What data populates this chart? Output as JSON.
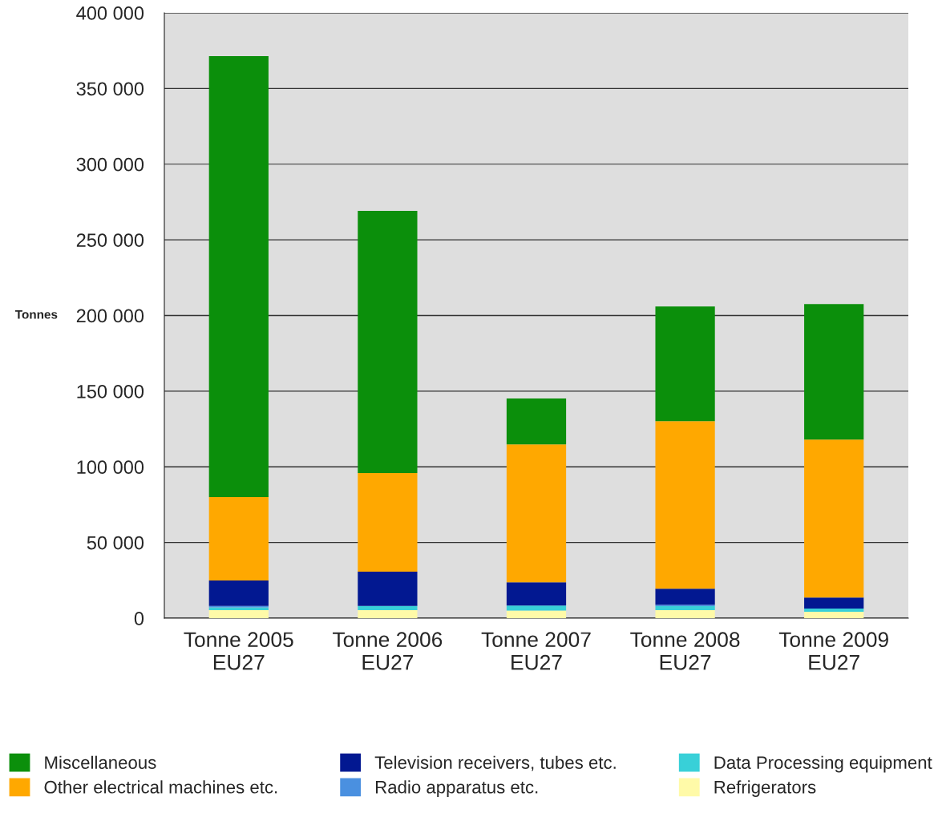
{
  "chart_data": {
    "type": "bar",
    "stacked": true,
    "ylabel": "Tonnes",
    "categories": [
      "Tonne 2005\nEU27",
      "Tonne 2006\nEU27",
      "Tonne 2007\nEU27",
      "Tonne 2008\nEU27",
      "Tonne 2009\nEU27"
    ],
    "series": [
      {
        "name": "Refrigerators",
        "color": "#fffaa8",
        "values": [
          5300,
          5300,
          5000,
          5300,
          4200
        ]
      },
      {
        "name": "Data Processing equipment",
        "color": "#38d0d8",
        "values": [
          1800,
          2800,
          3400,
          2600,
          2100
        ]
      },
      {
        "name": "Radio apparatus etc.",
        "color": "#4a90e0",
        "values": [
          1000,
          0,
          0,
          1000,
          0
        ]
      },
      {
        "name": "Television receivers, tubes etc.",
        "color": "#021891",
        "values": [
          16800,
          22600,
          15300,
          10600,
          7400
        ]
      },
      {
        "name": "Other electrical machines etc.",
        "color": "#ffa800",
        "values": [
          55100,
          65200,
          91200,
          110700,
          104300
        ]
      },
      {
        "name": "Miscellaneous",
        "color": "#0b8f0b",
        "values": [
          291400,
          173200,
          30200,
          75800,
          89600
        ]
      }
    ],
    "ylim": [
      0,
      400000
    ],
    "yticks": [
      {
        "value": 0,
        "label": "0"
      },
      {
        "value": 50000,
        "label": "50 000"
      },
      {
        "value": 100000,
        "label": "100 000"
      },
      {
        "value": 150000,
        "label": "150 000"
      },
      {
        "value": 200000,
        "label": "200 000"
      },
      {
        "value": 250000,
        "label": "250 000"
      },
      {
        "value": 300000,
        "label": "300 000"
      },
      {
        "value": 350000,
        "label": "350 000"
      },
      {
        "value": 400000,
        "label": "400 000"
      }
    ],
    "grid": "y",
    "legend": "bottom"
  }
}
